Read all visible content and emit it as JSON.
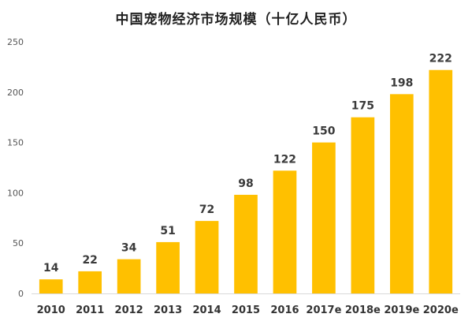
{
  "chart_data": {
    "type": "bar",
    "title": "中国宠物经济市场规模（十亿人民币）",
    "categories": [
      "2010",
      "2011",
      "2012",
      "2013",
      "2014",
      "2015",
      "2016",
      "2017e",
      "2018e",
      "2019e",
      "2020e"
    ],
    "values": [
      14,
      22,
      34,
      51,
      72,
      98,
      122,
      150,
      175,
      198,
      222
    ],
    "data_labels": [
      "14",
      "22",
      "34",
      "51",
      "72",
      "98",
      "122",
      "150",
      "175",
      "198",
      "222"
    ],
    "ylim": [
      0,
      250
    ],
    "yticks": [
      0,
      50,
      100,
      150,
      200,
      250
    ],
    "ytick_labels": [
      "0",
      "50",
      "100",
      "150",
      "200",
      "250"
    ],
    "xlabel": "",
    "ylabel": "",
    "grid": false,
    "legend": "none",
    "bar_color": "#FFC000",
    "axis_color": "#d9d9d9"
  }
}
